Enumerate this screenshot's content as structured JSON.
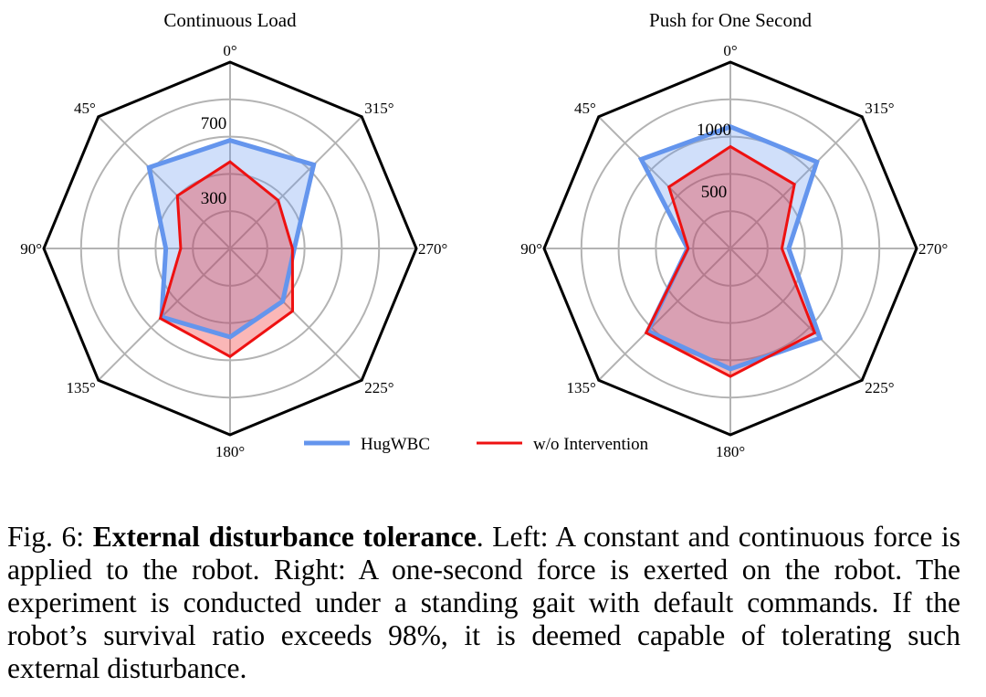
{
  "chart_data": [
    {
      "type": "radar",
      "title": "Continuous Load",
      "angles": [
        "0°",
        "315°",
        "270°",
        "225°",
        "180°",
        "135°",
        "90°",
        "45°"
      ],
      "rlim": [
        0,
        1000
      ],
      "rings": [
        200,
        400,
        600,
        800
      ],
      "ring_labels": [
        {
          "value": 300,
          "label": "300"
        },
        {
          "value": 700,
          "label": "700"
        }
      ],
      "series": [
        {
          "name": "HugWBC",
          "color": "#6495ED",
          "values": [
            580,
            635,
            345,
            400,
            475,
            520,
            345,
            615
          ]
        },
        {
          "name": "w/o Intervention",
          "color": "#EE1111",
          "values": [
            465,
            365,
            335,
            475,
            580,
            530,
            265,
            400
          ]
        }
      ]
    },
    {
      "type": "radar",
      "title": "Push for One Second",
      "angles": [
        "0°",
        "315°",
        "270°",
        "225°",
        "180°",
        "135°",
        "90°",
        "45°"
      ],
      "rlim": [
        0,
        1500
      ],
      "rings": [
        300,
        600,
        900,
        1200
      ],
      "ring_labels": [
        {
          "value": 500,
          "label": "500"
        },
        {
          "value": 1000,
          "label": "1000"
        }
      ],
      "series": [
        {
          "name": "HugWBC",
          "color": "#6495ED",
          "values": [
            980,
            985,
            470,
            1020,
            970,
            940,
            345,
            1015
          ]
        },
        {
          "name": "w/o Intervention",
          "color": "#EE1111",
          "values": [
            820,
            730,
            415,
            960,
            1030,
            960,
            340,
            700
          ]
        }
      ]
    }
  ],
  "legend": [
    {
      "label": "HugWBC",
      "color": "#6495ED"
    },
    {
      "label": "w/o Intervention",
      "color": "#EE1111"
    }
  ],
  "caption": {
    "prefix": "Fig. 6: ",
    "bold": "External disturbance tolerance",
    "body": ". Left: A constant and continuous force is applied to the robot. Right: A one-second force is exerted on the robot. The experiment is conducted under a standing gait with default commands. If the robot’s survival ratio exceeds 98%, it is deemed capable of tolerating such external disturbance."
  }
}
